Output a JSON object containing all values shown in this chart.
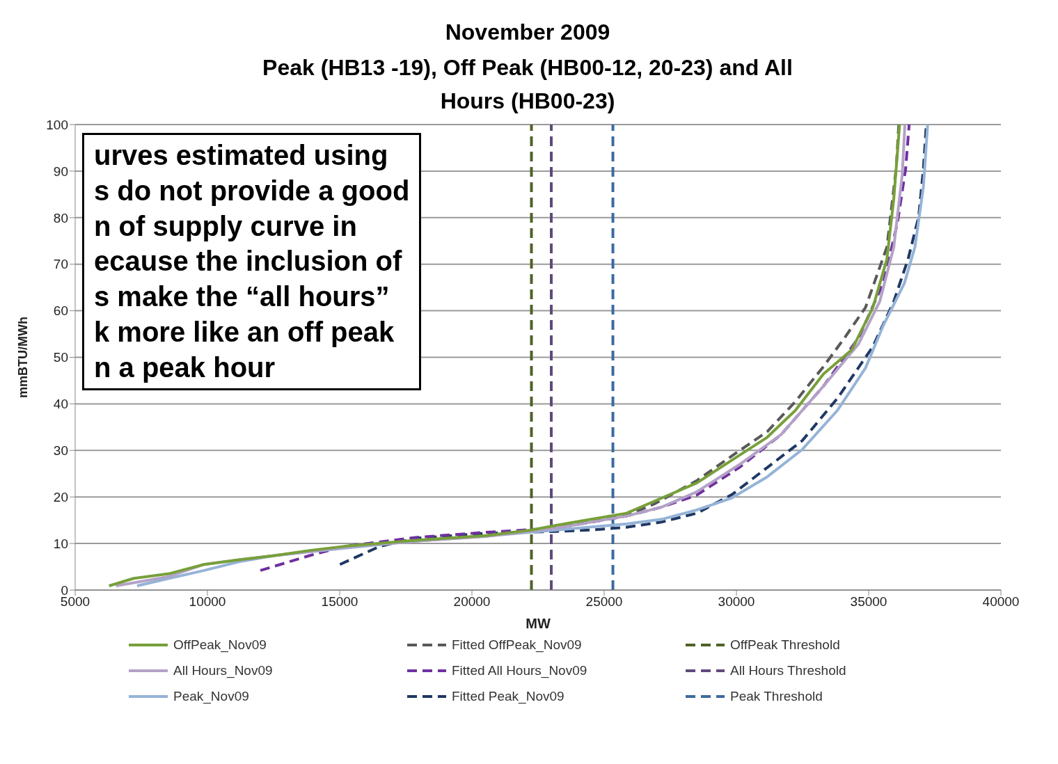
{
  "chart_data": {
    "type": "line",
    "title": "November 2009",
    "subtitle": "Peak (HB13 -19), Off Peak (HB00-12, 20-23) and All Hours (HB00-23)",
    "xlabel": "MW",
    "ylabel": "mmBTU/MWh",
    "annotations": [
      "urves estimated using\ns do not provide a good\nn of supply curve in\necause the inclusion of\ns make the “all hours”\nk more like an off peak\nn a peak hour"
    ],
    "xlim": [
      5000,
      40000
    ],
    "xticks": [
      5000,
      10000,
      15000,
      20000,
      25000,
      30000,
      35000,
      40000
    ],
    "ylim": [
      0,
      100
    ],
    "yticks": [
      0,
      10,
      20,
      30,
      40,
      50,
      60,
      70,
      80,
      90,
      100
    ],
    "grid": "y",
    "legend": "bottom",
    "marker": "none",
    "series": [
      {
        "name": "OffPeak_Nov09",
        "color": "#77a03a",
        "line_style": "solid",
        "x": [
          6280,
          7210,
          8540,
          9870,
          11200,
          12530,
          13860,
          15190,
          17860,
          20520,
          22250,
          23180,
          24510,
          25840,
          26900,
          28500,
          30100,
          31160,
          32230,
          33290,
          34360,
          35160,
          35690,
          35950,
          36170
        ],
        "values": [
          0.9,
          2.5,
          3.5,
          5.5,
          6.5,
          7.4,
          8.5,
          9.4,
          10.7,
          11.7,
          12.9,
          13.9,
          15.2,
          16.5,
          19.1,
          23,
          28.9,
          32.8,
          38.6,
          46.4,
          51.6,
          60.7,
          71.1,
          84.1,
          100
        ]
      },
      {
        "name": "All Hours_Nov09",
        "color": "#b3a2c7",
        "line_style": "solid",
        "x": [
          6540,
          8540,
          9870,
          11200,
          12530,
          15190,
          17860,
          20520,
          23180,
          25840,
          27170,
          28500,
          30100,
          31690,
          33290,
          34620,
          35420,
          35950,
          36270,
          36370
        ],
        "values": [
          0.9,
          2.9,
          5.5,
          6.5,
          7.4,
          9.2,
          10.5,
          11.5,
          13.3,
          15.9,
          17.8,
          21.1,
          26.9,
          33.4,
          43.8,
          52.9,
          62,
          73.7,
          89.3,
          100
        ]
      },
      {
        "name": "Peak_Nov09",
        "color": "#95b3d7",
        "line_style": "solid",
        "x": [
          7340,
          8540,
          9870,
          11200,
          12530,
          15190,
          17860,
          20520,
          23180,
          25840,
          27170,
          28500,
          29830,
          31160,
          32490,
          33820,
          34880,
          35550,
          36350,
          36750,
          37070,
          37230
        ],
        "values": [
          0.9,
          2.5,
          4.2,
          6.1,
          7.4,
          9,
          10.5,
          11.6,
          12.9,
          14.2,
          15.2,
          17.2,
          19.8,
          24.3,
          30.2,
          38.6,
          47.7,
          56.8,
          65.9,
          73.7,
          86.7,
          100
        ]
      },
      {
        "name": "Fitted OffPeak_Nov09",
        "color": "#595959",
        "line_style": "dashed",
        "x": [
          22250,
          23180,
          24510,
          25840,
          26900,
          28500,
          30000,
          31160,
          32230,
          33290,
          34090,
          34880,
          35690,
          36040,
          36140
        ],
        "values": [
          12.8,
          13.5,
          14.6,
          16,
          18.5,
          23.5,
          29.5,
          34,
          40.5,
          48,
          54.2,
          60.7,
          73.7,
          90.6,
          100
        ]
      },
      {
        "name": "Fitted All Hours_Nov09",
        "color": "#7030a0",
        "line_style": "dashed",
        "x": [
          12000,
          13860,
          15190,
          17860,
          20520,
          23180,
          25840,
          27170,
          28500,
          30100,
          31690,
          33290,
          34620,
          35550,
          36090,
          36400,
          36530
        ],
        "values": [
          4.2,
          7.4,
          9.4,
          11.3,
          12.4,
          13.3,
          15.9,
          17.8,
          20.4,
          26.3,
          33.4,
          43.8,
          54.2,
          65.9,
          78.9,
          90.6,
          100
        ]
      },
      {
        "name": "Fitted Peak_Nov09",
        "color": "#1f3864",
        "line_style": "dashed",
        "x": [
          15010,
          16520,
          17860,
          20520,
          23180,
          24510,
          25840,
          27170,
          28500,
          29830,
          31160,
          32490,
          33820,
          35160,
          35950,
          36490,
          36890,
          37070,
          37180
        ],
        "values": [
          5.5,
          9.4,
          11.1,
          12.2,
          12.6,
          12.9,
          13.5,
          14.6,
          16.5,
          20.5,
          26.3,
          32.1,
          41.2,
          52.3,
          62,
          71.1,
          80.2,
          90.6,
          100
        ]
      },
      {
        "name": "OffPeak Threshold",
        "color": "#4f6228",
        "line_style": "dashed",
        "x": [
          22250,
          22250
        ],
        "values": [
          0,
          100
        ]
      },
      {
        "name": "All Hours Threshold",
        "color": "#604a7b",
        "line_style": "dashed",
        "x": [
          23000,
          23000
        ],
        "values": [
          0,
          100
        ]
      },
      {
        "name": "Peak Threshold",
        "color": "#3c6aa0",
        "line_style": "dashed",
        "x": [
          25330,
          25330
        ],
        "values": [
          0,
          100
        ]
      }
    ]
  }
}
